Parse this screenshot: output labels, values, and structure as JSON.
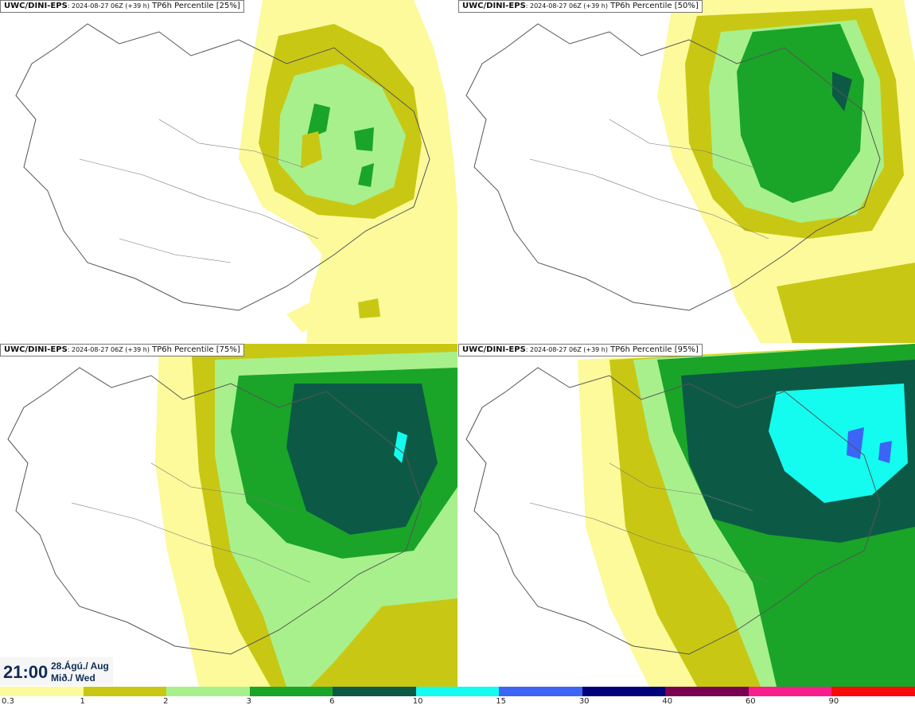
{
  "panels": [
    {
      "model": "UWC/DINI-EPS",
      "meta": ": 2024-08-27 06Z (+39 h)",
      "product": " TP6h Percentile [25%]"
    },
    {
      "model": "UWC/DINI-EPS",
      "meta": ": 2024-08-27 06Z (+39 h)",
      "product": " TP6h Percentile [50%]"
    },
    {
      "model": "UWC/DINI-EPS",
      "meta": ": 2024-08-27 06Z (+39 h)",
      "product": " TP6h Percentile [75%]"
    },
    {
      "model": "UWC/DINI-EPS",
      "meta": ": 2024-08-27 06Z (+39 h)",
      "product": " TP6h Percentile [95%]"
    }
  ],
  "valid_time": {
    "hour": "21:00",
    "date_line1": "28.Ágú./ Aug",
    "date_line2": "Mið./ Wed"
  },
  "legend": {
    "labels": [
      "0.3",
      "1",
      "2",
      "3",
      "6",
      "10",
      "15",
      "30",
      "40",
      "60",
      "90"
    ],
    "colors": [
      "#fcfa9a",
      "#c8c814",
      "#a8f08c",
      "#1aa528",
      "#0c5a46",
      "#14fcf0",
      "#3c64f5",
      "#000078",
      "#780050",
      "#fa1e8c",
      "#fa0a0a"
    ]
  },
  "palette": {
    "light_yellow": "#fcfa9a",
    "olive": "#c8c814",
    "light_green": "#a8f08c",
    "green": "#1aa528",
    "dark_green": "#0c5a46",
    "cyan": "#14fcf0",
    "blue": "#3c64f5",
    "map_line": "#555555"
  }
}
